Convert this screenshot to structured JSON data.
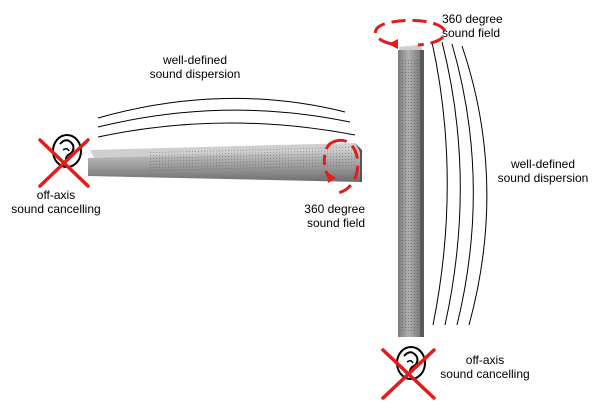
{
  "horizontal": {
    "dispersion_label": [
      "well-defined",
      "sound dispersion"
    ],
    "field_label": [
      "360 degree",
      "sound field"
    ],
    "cancel_label": [
      "off-axis",
      "sound cancelling"
    ]
  },
  "vertical": {
    "dispersion_label": [
      "well-defined",
      "sound dispersion"
    ],
    "field_label": [
      "360 degree",
      "sound field"
    ],
    "cancel_label": [
      "off-axis",
      "sound cancelling"
    ]
  },
  "colors": {
    "accent": "#e31b1b",
    "speaker_body": "#9b9b9b",
    "speaker_dark": "#6a6a6a",
    "arc": "#000000"
  }
}
